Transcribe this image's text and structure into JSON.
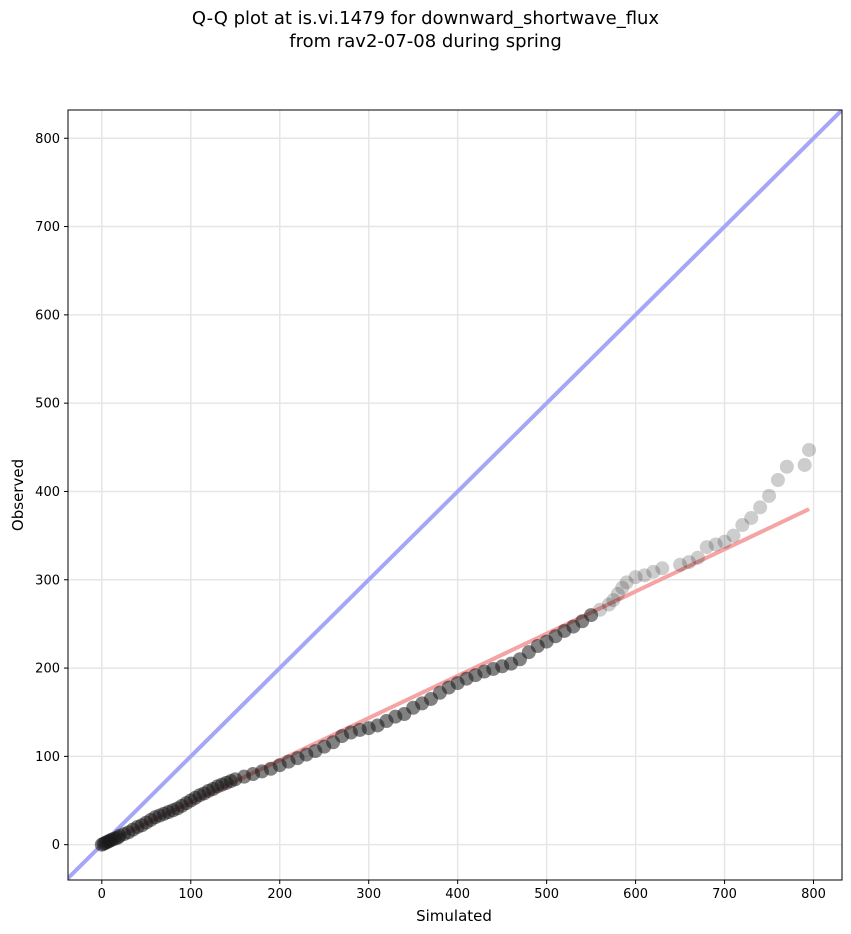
{
  "chart_data": {
    "type": "scatter",
    "title": "Q-Q plot at is.vi.1479 for downward_shortwave_flux",
    "subtitle": "from rav2-07-08 during spring",
    "xlabel": "Simulated",
    "ylabel": "Observed",
    "xlim": [
      -38,
      832
    ],
    "ylim": [
      -40,
      832
    ],
    "xticks": [
      0,
      100,
      200,
      300,
      400,
      500,
      600,
      700,
      800
    ],
    "yticks": [
      0,
      100,
      200,
      300,
      400,
      500,
      600,
      700,
      800
    ],
    "grid": true,
    "reference_lines": [
      {
        "kind": "one_to_one",
        "color": "#a6a6f7",
        "x": [
          -38,
          832
        ],
        "y": [
          -38,
          832
        ]
      },
      {
        "kind": "fit",
        "color": "#f5a3a3",
        "x": [
          0,
          795
        ],
        "y": [
          0,
          380
        ]
      }
    ],
    "series": [
      {
        "color": "#1a1a1a",
        "points": [
          [
            0,
            0
          ],
          [
            2,
            1
          ],
          [
            4,
            2
          ],
          [
            6,
            3
          ],
          [
            8,
            4
          ],
          [
            10,
            5
          ],
          [
            12,
            6
          ],
          [
            15,
            7
          ],
          [
            18,
            8
          ],
          [
            20,
            10
          ],
          [
            25,
            12
          ],
          [
            30,
            14
          ],
          [
            35,
            17
          ],
          [
            40,
            20
          ],
          [
            45,
            22
          ],
          [
            50,
            25
          ],
          [
            55,
            28
          ],
          [
            60,
            31
          ],
          [
            65,
            33
          ],
          [
            70,
            35
          ],
          [
            75,
            37
          ],
          [
            80,
            39
          ],
          [
            85,
            41
          ],
          [
            90,
            44
          ],
          [
            95,
            47
          ],
          [
            100,
            50
          ],
          [
            105,
            53
          ],
          [
            110,
            56
          ],
          [
            115,
            58
          ],
          [
            120,
            61
          ],
          [
            125,
            63
          ],
          [
            130,
            66
          ],
          [
            135,
            68
          ],
          [
            140,
            70
          ],
          [
            145,
            72
          ],
          [
            150,
            74
          ],
          [
            160,
            77
          ],
          [
            170,
            80
          ],
          [
            180,
            83
          ],
          [
            190,
            86
          ],
          [
            200,
            90
          ],
          [
            210,
            94
          ],
          [
            220,
            98
          ],
          [
            230,
            102
          ],
          [
            240,
            106
          ],
          [
            250,
            111
          ],
          [
            260,
            116
          ],
          [
            270,
            123
          ],
          [
            280,
            127
          ],
          [
            290,
            130
          ],
          [
            300,
            132
          ],
          [
            310,
            135
          ],
          [
            320,
            140
          ],
          [
            330,
            145
          ],
          [
            340,
            148
          ],
          [
            350,
            155
          ],
          [
            360,
            160
          ],
          [
            370,
            165
          ],
          [
            380,
            172
          ],
          [
            390,
            178
          ],
          [
            400,
            183
          ],
          [
            410,
            188
          ],
          [
            420,
            192
          ],
          [
            430,
            196
          ],
          [
            440,
            199
          ],
          [
            450,
            202
          ],
          [
            460,
            205
          ],
          [
            470,
            210
          ],
          [
            480,
            218
          ],
          [
            490,
            225
          ],
          [
            500,
            230
          ],
          [
            510,
            236
          ],
          [
            520,
            242
          ],
          [
            530,
            247
          ],
          [
            540,
            253
          ],
          [
            550,
            260
          ],
          [
            560,
            266
          ],
          [
            570,
            272
          ],
          [
            575,
            277
          ],
          [
            580,
            284
          ],
          [
            585,
            291
          ],
          [
            590,
            297
          ],
          [
            600,
            303
          ],
          [
            610,
            305
          ],
          [
            620,
            309
          ],
          [
            630,
            313
          ],
          [
            650,
            317
          ],
          [
            660,
            320
          ],
          [
            670,
            325
          ],
          [
            680,
            337
          ],
          [
            690,
            340
          ],
          [
            700,
            343
          ],
          [
            710,
            350
          ],
          [
            720,
            362
          ],
          [
            730,
            370
          ],
          [
            740,
            382
          ],
          [
            750,
            395
          ],
          [
            760,
            413
          ],
          [
            770,
            428
          ],
          [
            790,
            430
          ],
          [
            795,
            447
          ]
        ]
      }
    ]
  }
}
